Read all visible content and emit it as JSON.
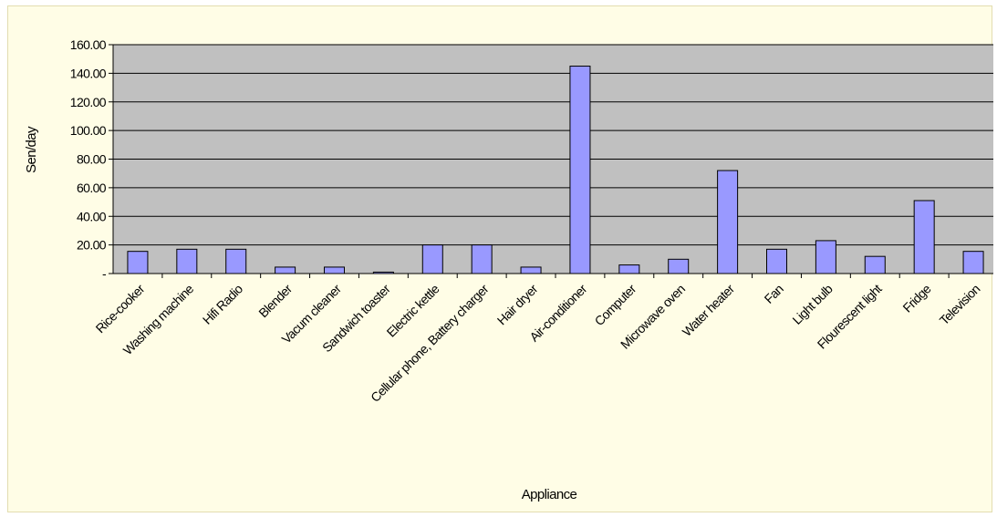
{
  "chart_data": {
    "type": "bar",
    "xlabel": "Appliance",
    "ylabel": "Sen/day",
    "ylim": [
      0,
      160
    ],
    "y_tick_step": 20,
    "y_tick_labels": [
      "-",
      "20.00",
      "40.00",
      "60.00",
      "80.00",
      "100.00",
      "120.00",
      "140.00",
      "160.00"
    ],
    "grid": true,
    "categories": [
      "Rice-cooker",
      "Washing machine",
      "Hifi Radio",
      "Blender",
      "Vacum cleaner",
      "Sandwich toaster",
      "Electric kettle",
      "Cellular phone, Battery charger",
      "Hair dryer",
      "Air-conditioner",
      "Computer",
      "Microwave oven",
      "Water heater",
      "Fan",
      "Light bulb",
      "Flourescent light",
      "Fridge",
      "Television"
    ],
    "values": [
      15.5,
      17,
      17,
      4.5,
      4.5,
      1,
      20,
      20,
      4.5,
      145,
      6,
      10,
      72,
      17,
      23,
      12,
      51,
      15.5
    ],
    "colors": {
      "bar_fill": "#9999ff",
      "bar_stroke": "#000000",
      "plot_background": "#c0c0c0",
      "page_background": "#fffde6",
      "grid": "#000000"
    }
  }
}
